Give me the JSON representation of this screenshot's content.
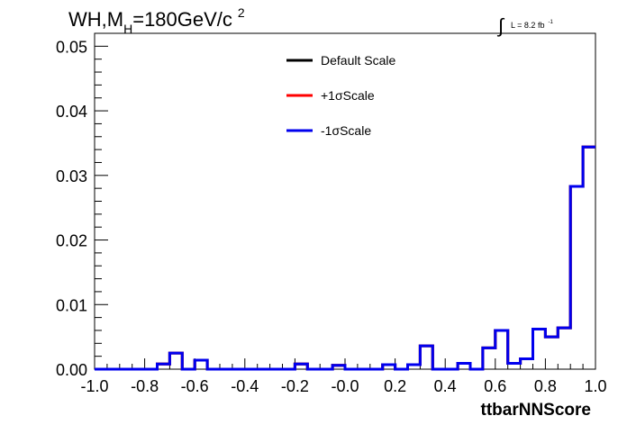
{
  "chart_data": {
    "type": "step-histogram",
    "title_main": "WH,M",
    "title_sub": "H",
    "title_rest": "=180GeV/c",
    "title_sup": "2",
    "lumi_symbol": "∫",
    "lumi_text": "L = 8.2 fb",
    "lumi_sup": "-1",
    "xlabel": "ttbarNNScore",
    "ylabel": "",
    "xlim": [
      -1.0,
      1.0
    ],
    "ylim": [
      0,
      0.052
    ],
    "xticks": [
      -1.0,
      -0.8,
      -0.6,
      -0.4,
      -0.2,
      0.0,
      0.2,
      0.4,
      0.6,
      0.8,
      1.0
    ],
    "xtick_labels": [
      "-1.0",
      "-0.8",
      "-0.6",
      "-0.4",
      "-0.2",
      "-0.0",
      "0.2",
      "0.4",
      "0.6",
      "0.8",
      "1.0"
    ],
    "yticks": [
      0.0,
      0.01,
      0.02,
      0.03,
      0.04,
      0.05
    ],
    "ytick_labels": [
      "0.00",
      "0.01",
      "0.02",
      "0.03",
      "0.04",
      "0.05"
    ],
    "grid": false,
    "legend_position": "top-center",
    "bin_edges": [
      -1.0,
      -0.95,
      -0.9,
      -0.85,
      -0.8,
      -0.75,
      -0.7,
      -0.65,
      -0.6,
      -0.55,
      -0.5,
      -0.45,
      -0.4,
      -0.35,
      -0.3,
      -0.25,
      -0.2,
      -0.15,
      -0.1,
      -0.05,
      0.0,
      0.05,
      0.1,
      0.15,
      0.2,
      0.25,
      0.3,
      0.35,
      0.4,
      0.45,
      0.5,
      0.55,
      0.6,
      0.65,
      0.7,
      0.75,
      0.8,
      0.85,
      0.9,
      0.95,
      1.0
    ],
    "series": [
      {
        "name": "Default Scale",
        "color": "#000000",
        "values": [
          0,
          0,
          0,
          0,
          0,
          0.0008,
          0.0025,
          0,
          0.0014,
          0,
          0,
          0,
          0,
          0,
          0,
          0,
          0.0008,
          0,
          0,
          0.0006,
          0,
          0,
          0,
          0.0007,
          0,
          0.0007,
          0.0036,
          0,
          0,
          0.0009,
          0,
          0.0033,
          0.006,
          0.0009,
          0.0016,
          0.0062,
          0.005,
          0.0064,
          0.0283,
          0.0344
        ]
      },
      {
        "name": "+1σScale",
        "color": "#ff0000",
        "values": [
          0,
          0,
          0,
          0,
          0,
          0.0008,
          0.0025,
          0,
          0.0014,
          0,
          0,
          0,
          0,
          0,
          0,
          0,
          0.0008,
          0,
          0,
          0.0006,
          0,
          0,
          0,
          0.0007,
          0,
          0.0007,
          0.0036,
          0,
          0,
          0.0009,
          0,
          0.0033,
          0.006,
          0.0009,
          0.0016,
          0.0062,
          0.005,
          0.0064,
          0.0283,
          0.0344
        ]
      },
      {
        "name": "-1σScale",
        "color": "#0000ee",
        "values": [
          0,
          0,
          0,
          0,
          0,
          0.0008,
          0.0025,
          0,
          0.0014,
          0,
          0,
          0,
          0,
          0,
          0,
          0,
          0.0008,
          0,
          0,
          0.0006,
          0,
          0,
          0,
          0.0007,
          0,
          0.0007,
          0.0036,
          0,
          0,
          0.0009,
          0,
          0.0033,
          0.006,
          0.0009,
          0.0016,
          0.0062,
          0.005,
          0.0064,
          0.0283,
          0.0344
        ]
      }
    ]
  }
}
